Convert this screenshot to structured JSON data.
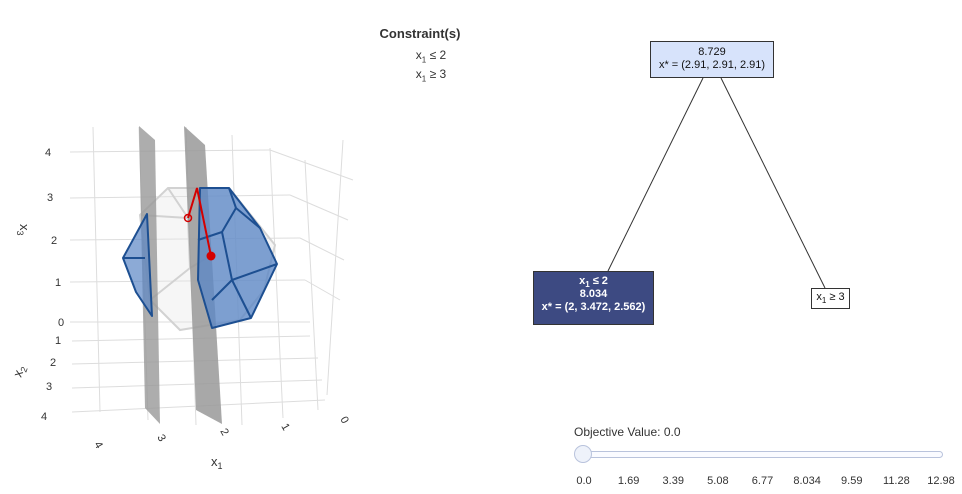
{
  "constraints_panel": {
    "title": "Constraint(s)",
    "constraints": [
      {
        "var": "x",
        "sub": "1",
        "rel": "≤ 2"
      },
      {
        "var": "x",
        "sub": "1",
        "rel": "≥ 3"
      }
    ]
  },
  "plot3d": {
    "x1_label": "x",
    "x1_sub": "1",
    "x2_label": "x",
    "x2_sub": "2",
    "x3_label": "x",
    "x3_sub": "3",
    "x1_ticks": [
      "4",
      "3",
      "2",
      "1",
      "0"
    ],
    "x2_ticks": [
      "1",
      "2",
      "3",
      "4"
    ],
    "x3_ticks": [
      "0",
      "1",
      "2",
      "3",
      "4"
    ],
    "colors": {
      "polytope_fill": "#5b86c5",
      "polytope_edge": "#1d4f91",
      "cutting_plane": "#999999",
      "path": "#d40000",
      "grid": "#dddddd"
    }
  },
  "tree": {
    "root": {
      "value": "8.729",
      "xstar": "x* = (2.91, 2.91, 2.91)"
    },
    "left": {
      "constraint_var": "x",
      "constraint_sub": "1",
      "constraint_rel": " ≤ 2",
      "value": "8.034",
      "xstar": "x* = (2, 3.472, 2.562)"
    },
    "right": {
      "constraint_var": "x",
      "constraint_sub": "1",
      "constraint_rel": " ≥ 3"
    },
    "colors": {
      "root_fill": "#d7e3fb",
      "active_fill": "#3d4a82",
      "leaf_fill": "#ffffff",
      "edge": "#333333"
    }
  },
  "slider": {
    "label": "Objective Value: 0.0",
    "value": 0.0,
    "ticks": [
      "0.0",
      "1.69",
      "3.39",
      "5.08",
      "6.77",
      "8.034",
      "9.59",
      "11.28",
      "12.98"
    ]
  }
}
